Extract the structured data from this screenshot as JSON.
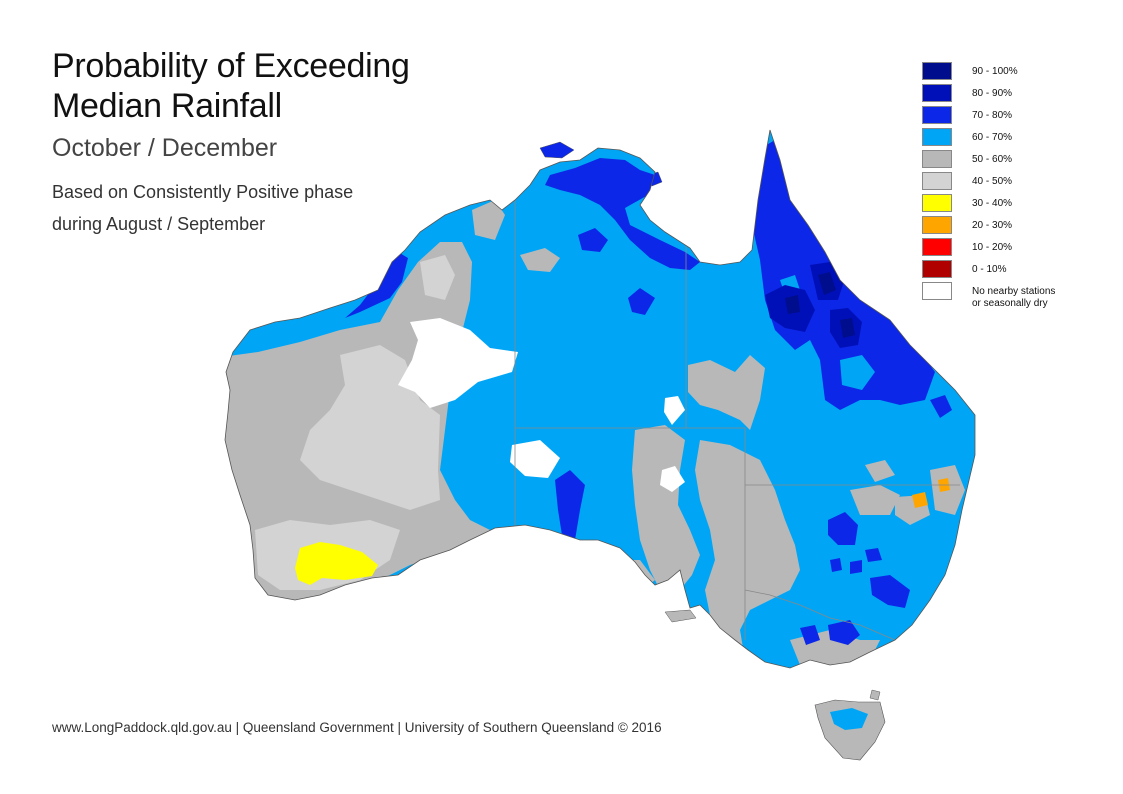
{
  "title": {
    "line1": "Probability of Exceeding",
    "line2": "Median Rainfall"
  },
  "period": "October / December",
  "phase": {
    "line1": "Based on Consistently Positive phase",
    "line2": "during August / September"
  },
  "legend": [
    {
      "label": "90 - 100%",
      "color": "#000d8c"
    },
    {
      "label": "80 - 90%",
      "color": "#0010b8"
    },
    {
      "label": "70 - 80%",
      "color": "#0d27e8"
    },
    {
      "label": "60 - 70%",
      "color": "#00a6f5"
    },
    {
      "label": "50 - 60%",
      "color": "#b8b8b8"
    },
    {
      "label": "40 - 50%",
      "color": "#d3d3d3"
    },
    {
      "label": "30 - 40%",
      "color": "#ffff00"
    },
    {
      "label": "20 - 30%",
      "color": "#ffa500"
    },
    {
      "label": "10 - 20%",
      "color": "#ff0000"
    },
    {
      "label": "0 - 10%",
      "color": "#b00000"
    },
    {
      "label": "No nearby stations",
      "label2": "or seasonally dry",
      "color": "#ffffff"
    }
  ],
  "footer": "www.LongPaddock.qld.gov.au | Queensland Government | University of Southern Queensland © 2016"
}
